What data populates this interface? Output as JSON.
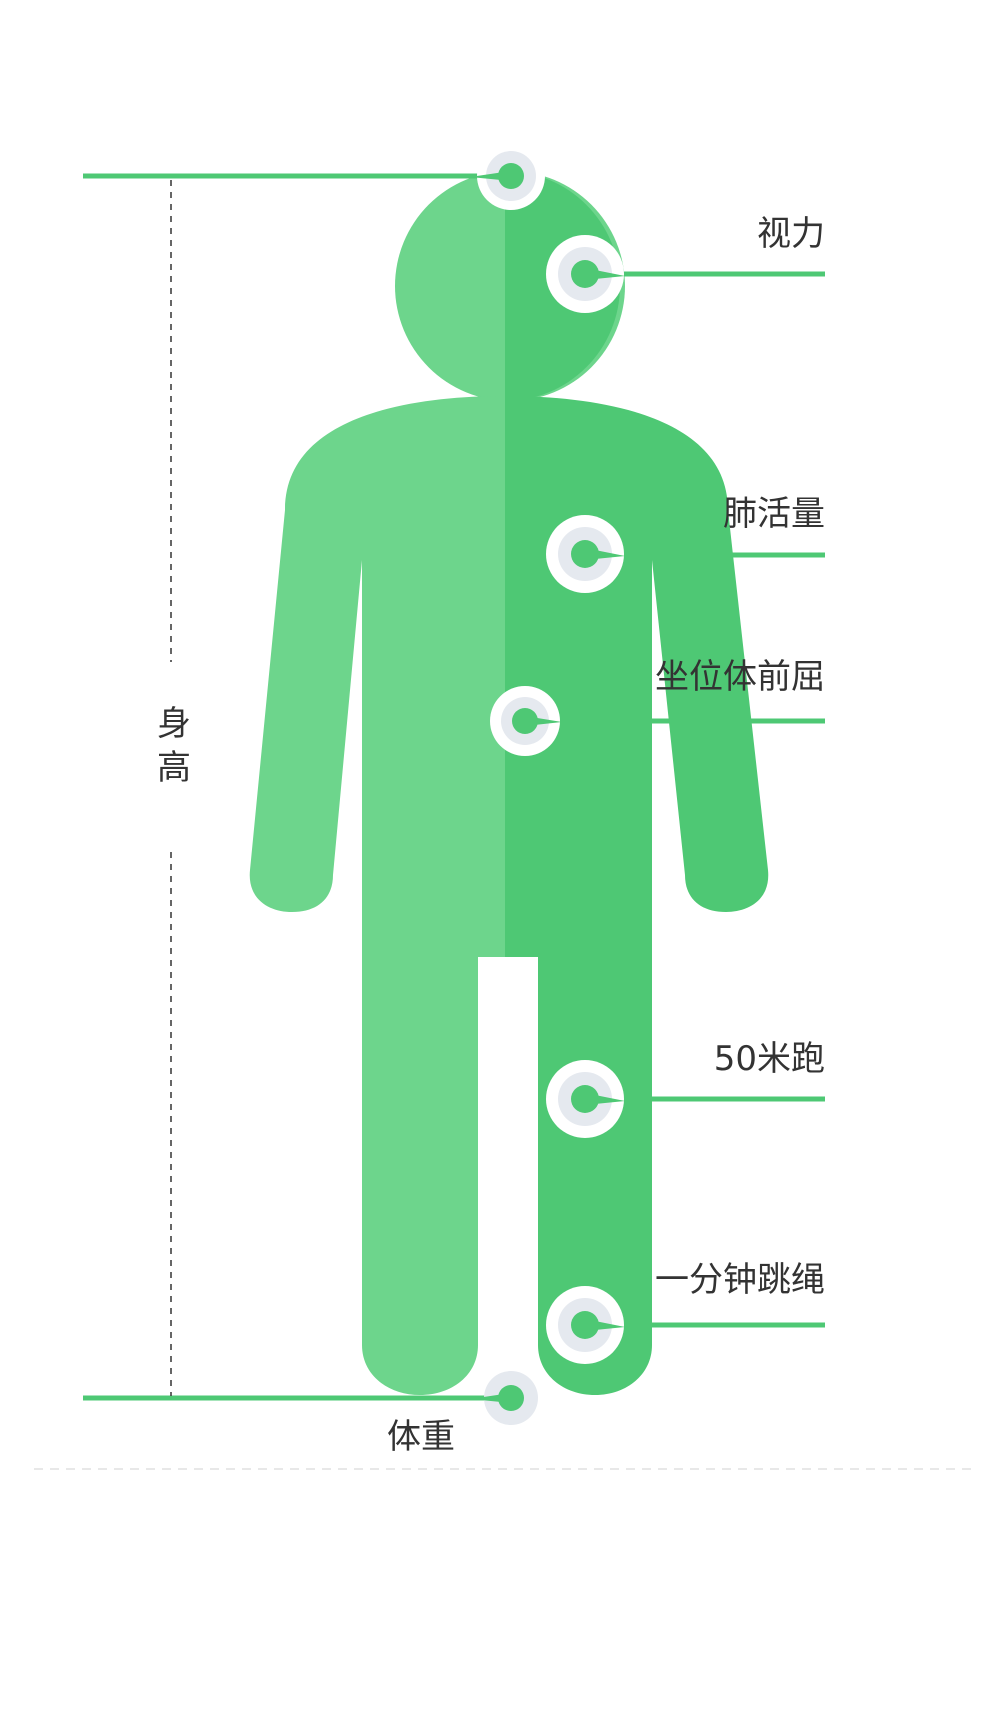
{
  "diagram": {
    "labels": {
      "vision": "视力",
      "lung_capacity": "肺活量",
      "sit_and_reach": "坐位体前屈",
      "run_50m": "50米跑",
      "jump_rope": "一分钟跳绳",
      "height": "身高",
      "weight": "体重"
    },
    "colors": {
      "body_light": "#6dd58c",
      "body_dark": "#4ec874",
      "line": "#4ec874",
      "dot_ring": "#e5e9ef",
      "dot_center": "#4ec874",
      "text": "#333333",
      "dashed": "#333333",
      "separator": "#e8e8e8"
    }
  }
}
